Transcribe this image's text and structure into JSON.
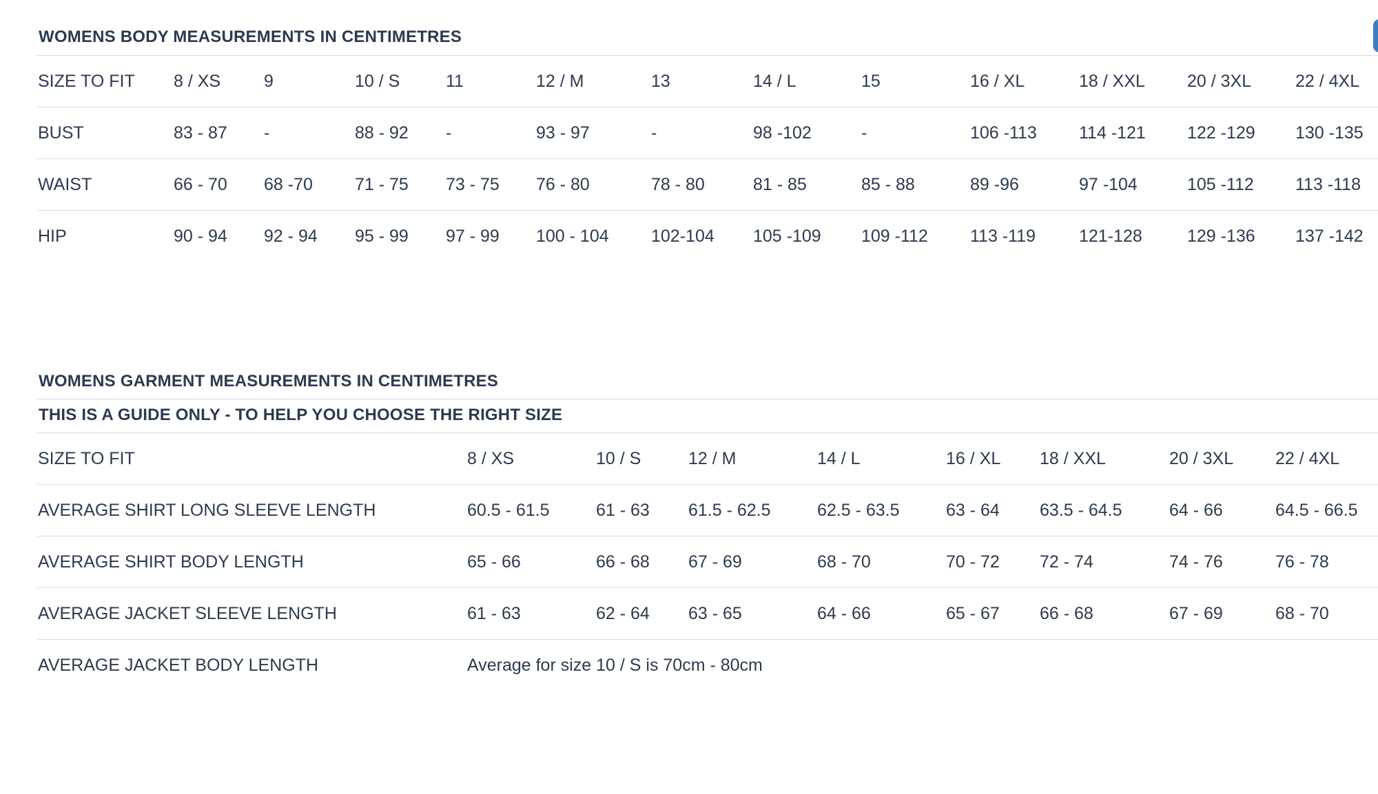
{
  "body_table": {
    "title": "WOMENS BODY MEASUREMENTS IN CENTIMETRES",
    "header": [
      "SIZE TO FIT",
      "8 / XS",
      "9",
      "10 / S",
      "11",
      "12 / M",
      "13",
      "14 / L",
      "15",
      "16 / XL",
      "18 / XXL",
      "20 / 3XL",
      "22 / 4XL"
    ],
    "rows": [
      [
        "BUST",
        "83 - 87",
        "-",
        "88 - 92",
        "-",
        "93 - 97",
        "-",
        "98 -102",
        "-",
        "106 -113",
        "114 -121",
        "122 -129",
        "130 -135"
      ],
      [
        "WAIST",
        "66 - 70",
        "68 -70",
        "71 - 75",
        "73 - 75",
        "76 - 80",
        "78 - 80",
        "81 - 85",
        "85 - 88",
        "89 -96",
        "97 -104",
        "105 -112",
        "113 -118"
      ],
      [
        "HIP",
        "90 - 94",
        "92 - 94",
        "95 - 99",
        "97 - 99",
        "100 - 104",
        "102-104",
        "105 -109",
        "109 -112",
        "113 -119",
        "121-128",
        "129 -136",
        "137 -142"
      ]
    ]
  },
  "garment_table": {
    "title": "WOMENS GARMENT MEASUREMENTS IN CENTIMETRES",
    "subtitle": "THIS IS A GUIDE ONLY - TO HELP YOU CHOOSE THE RIGHT SIZE",
    "header": [
      "SIZE TO FIT",
      "8 / XS",
      "10 / S",
      "12 / M",
      "14 / L",
      "16 / XL",
      "18 / XXL",
      "20 / 3XL",
      "22 / 4XL"
    ],
    "rows": [
      [
        "AVERAGE SHIRT LONG SLEEVE LENGTH",
        "60.5 - 61.5",
        "61 - 63",
        "61.5 - 62.5",
        "62.5 - 63.5",
        "63 - 64",
        "63.5 - 64.5",
        "64 - 66",
        "64.5 - 66.5"
      ],
      [
        "AVERAGE SHIRT BODY LENGTH",
        "65 - 66",
        "66 - 68",
        "67 - 69",
        "68 - 70",
        "70 - 72",
        "72 - 74",
        "74 - 76",
        "76 - 78"
      ],
      [
        "AVERAGE JACKET SLEEVE LENGTH",
        "61 - 63",
        "62 - 64",
        "63 - 65",
        "64 - 66",
        "65 - 67",
        "66 - 68",
        "67 - 69",
        "68 - 70"
      ]
    ],
    "jacket_body_row": {
      "label": "AVERAGE JACKET BODY LENGTH",
      "note": "Average for size 10 / S is 70cm - 80cm"
    }
  }
}
